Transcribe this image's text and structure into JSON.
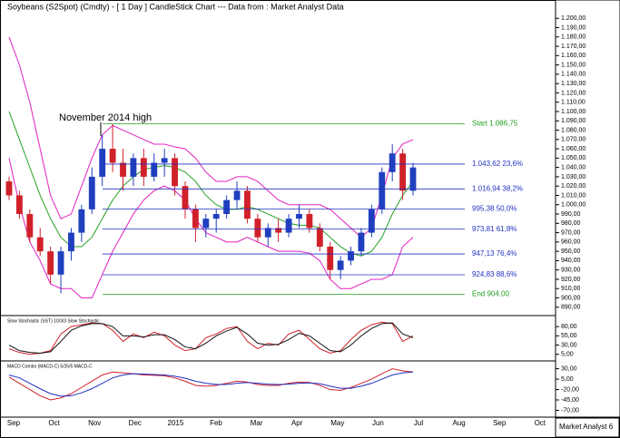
{
  "title": "Soybeans (S2Spot) (Cmdty) -  [ 1 Day ] CandleStick Chart --- Data from : Market Analyst Data",
  "footer": "Market Analyst 6",
  "categories": [
    "Sep",
    "Oct",
    "Nov",
    "Dec",
    "2015",
    "Feb",
    "Mar",
    "Apr",
    "May",
    "Jun",
    "Jul",
    "Aug",
    "Sep",
    "Oct"
  ],
  "chart_data": [
    {
      "type": "candlestick",
      "annotation": "November 2014 high",
      "up_color": "#1f3fbf",
      "down_color": "#d0202a",
      "ylim": [
        882,
        1208
      ],
      "yticks": [
        {
          "value": 890,
          "label": "890,00"
        },
        {
          "value": 900,
          "label": "900,00"
        },
        {
          "value": 910,
          "label": "910,00"
        },
        {
          "value": 920,
          "label": "920,00"
        },
        {
          "value": 930,
          "label": "930,00"
        },
        {
          "value": 940,
          "label": "940,00"
        },
        {
          "value": 950,
          "label": "950,00"
        },
        {
          "value": 960,
          "label": "960,00"
        },
        {
          "value": 970,
          "label": "970,00"
        },
        {
          "value": 980,
          "label": "980,00"
        },
        {
          "value": 990,
          "label": "990,00"
        },
        {
          "value": 1000,
          "label": "1.000,00"
        },
        {
          "value": 1010,
          "label": "1.010,00"
        },
        {
          "value": 1020,
          "label": "1.020,00"
        },
        {
          "value": 1030,
          "label": "1.030,00"
        },
        {
          "value": 1040,
          "label": "1.040,00"
        },
        {
          "value": 1050,
          "label": "1.050,00"
        },
        {
          "value": 1060,
          "label": "1.060,00"
        },
        {
          "value": 1070,
          "label": "1.070,00"
        },
        {
          "value": 1080,
          "label": "1.080,00"
        },
        {
          "value": 1090,
          "label": "1.090,00"
        },
        {
          "value": 1100,
          "label": "1.100,00"
        },
        {
          "value": 1110,
          "label": "1.110,00"
        },
        {
          "value": 1120,
          "label": "1.120,00"
        },
        {
          "value": 1130,
          "label": "1.130,00"
        },
        {
          "value": 1140,
          "label": "1.140,00"
        },
        {
          "value": 1150,
          "label": "1.150,00"
        },
        {
          "value": 1160,
          "label": "1.160,00"
        },
        {
          "value": 1170,
          "label": "1.170,00"
        },
        {
          "value": 1180,
          "label": "1.180,00"
        },
        {
          "value": 1190,
          "label": "1.190,00"
        },
        {
          "value": 1200,
          "label": "1.200,00"
        }
      ],
      "open": [
        1025,
        1010,
        990,
        965,
        950,
        925,
        950,
        970,
        995,
        1030,
        1060,
        1045,
        1030,
        1050,
        1030,
        1045,
        1050,
        1020,
        995,
        975,
        985,
        990,
        1005,
        1015,
        985,
        965,
        975,
        970,
        985,
        990,
        975,
        955,
        930,
        940,
        950,
        970,
        995,
        1035,
        1055,
        1015
      ],
      "high": [
        1030,
        1015,
        995,
        975,
        955,
        955,
        975,
        1000,
        1040,
        1075,
        1087,
        1060,
        1055,
        1060,
        1055,
        1060,
        1055,
        1025,
        1000,
        990,
        995,
        1010,
        1025,
        1020,
        990,
        980,
        985,
        990,
        1000,
        995,
        980,
        960,
        945,
        955,
        975,
        1000,
        1040,
        1065,
        1060,
        1045
      ],
      "low": [
        1005,
        985,
        960,
        945,
        915,
        905,
        940,
        960,
        990,
        1020,
        1035,
        1015,
        1020,
        1020,
        1025,
        1030,
        1010,
        985,
        960,
        965,
        970,
        985,
        995,
        980,
        960,
        955,
        960,
        965,
        975,
        970,
        950,
        920,
        920,
        935,
        945,
        965,
        990,
        1025,
        1005,
        1010
      ],
      "close": [
        1010,
        990,
        965,
        950,
        925,
        950,
        970,
        995,
        1030,
        1060,
        1045,
        1030,
        1050,
        1030,
        1045,
        1050,
        1020,
        995,
        975,
        985,
        990,
        1005,
        1015,
        985,
        965,
        975,
        970,
        985,
        990,
        975,
        955,
        930,
        940,
        950,
        970,
        995,
        1035,
        1055,
        1015,
        1040
      ],
      "series": [
        {
          "color": "#22a022",
          "values": [
            1100,
            1070,
            1040,
            1010,
            985,
            965,
            955,
            955,
            965,
            985,
            1005,
            1020,
            1030,
            1038,
            1040,
            1042,
            1040,
            1035,
            1025,
            1010,
            1000,
            995,
            995,
            998,
            995,
            990,
            985,
            980,
            978,
            978,
            975,
            965,
            955,
            948,
            945,
            950,
            965,
            990,
            1010,
            1025
          ]
        },
        {
          "color": "#e020c0",
          "values": [
            1180,
            1150,
            1110,
            1060,
            1010,
            985,
            990,
            1020,
            1050,
            1075,
            1085,
            1080,
            1075,
            1070,
            1065,
            1065,
            1062,
            1060,
            1050,
            1035,
            1025,
            1025,
            1030,
            1030,
            1025,
            1015,
            1005,
            1000,
            1000,
            1000,
            1000,
            995,
            985,
            975,
            965,
            975,
            1010,
            1050,
            1065,
            1070
          ]
        },
        {
          "color": "#e020c0",
          "values": [
            1050,
            1000,
            960,
            940,
            915,
            910,
            910,
            900,
            900,
            925,
            950,
            970,
            990,
            1005,
            1015,
            1020,
            1015,
            1005,
            985,
            970,
            965,
            960,
            960,
            965,
            960,
            955,
            950,
            950,
            950,
            948,
            940,
            920,
            910,
            910,
            915,
            920,
            920,
            925,
            955,
            965
          ]
        }
      ],
      "levels": [
        {
          "value": 1086.75,
          "label": "Start 1.086,75",
          "color": "#22a022"
        },
        {
          "value": 1043.62,
          "label": "1.043,62 23,6%",
          "color": "#2030c0"
        },
        {
          "value": 1016.94,
          "label": "1.016,94 38,2%",
          "color": "#2030c0"
        },
        {
          "value": 995.38,
          "label": "995,38 50,0%",
          "color": "#2030c0"
        },
        {
          "value": 973.81,
          "label": "973,81 61,8%",
          "color": "#2030c0"
        },
        {
          "value": 947.13,
          "label": "947,13 76,4%",
          "color": "#2030c0"
        },
        {
          "value": 924.83,
          "label": "924,83 88,6%",
          "color": "#2030c0"
        },
        {
          "value": 904,
          "label": "End 904,00",
          "color": "#22a022"
        }
      ]
    },
    {
      "type": "line",
      "title": "Slow Stochastic (SST) 10/3/3 Slow Stochastic",
      "ylim": [
        -8,
        100
      ],
      "yticks": [
        {
          "value": 80,
          "label": "80,00"
        },
        {
          "value": 55,
          "label": "55,00"
        },
        {
          "value": 30,
          "label": "30,00"
        },
        {
          "value": 5,
          "label": "5,00"
        }
      ],
      "series": [
        {
          "color": "#d0202a",
          "values": [
            20,
            10,
            5,
            8,
            15,
            60,
            80,
            85,
            90,
            88,
            70,
            40,
            60,
            50,
            65,
            55,
            30,
            15,
            20,
            50,
            60,
            75,
            80,
            40,
            20,
            35,
            30,
            60,
            70,
            45,
            20,
            8,
            15,
            45,
            70,
            85,
            92,
            88,
            40,
            55
          ]
        },
        {
          "color": "#111111",
          "values": [
            30,
            15,
            10,
            8,
            12,
            40,
            70,
            82,
            88,
            88,
            80,
            55,
            55,
            52,
            58,
            58,
            45,
            25,
            20,
            35,
            55,
            68,
            78,
            60,
            35,
            30,
            32,
            45,
            62,
            55,
            35,
            15,
            12,
            30,
            55,
            75,
            88,
            90,
            60,
            50
          ]
        }
      ]
    },
    {
      "type": "line",
      "title": "MACD Combo (MACD-C) 5/25/5 MACD-C",
      "ylim": [
        -82,
        40
      ],
      "yticks": [
        {
          "value": 30,
          "label": "30,00"
        },
        {
          "value": 5,
          "label": "5,00"
        },
        {
          "value": -20,
          "label": "-20,00"
        },
        {
          "value": -45,
          "label": "-45,00"
        },
        {
          "value": -70,
          "label": "-70,00"
        }
      ],
      "series": [
        {
          "color": "#d0202a",
          "values": [
            10,
            -5,
            -20,
            -35,
            -45,
            -40,
            -30,
            -15,
            0,
            15,
            22,
            20,
            18,
            15,
            14,
            13,
            8,
            0,
            -10,
            -12,
            -10,
            -5,
            0,
            -2,
            -8,
            -10,
            -10,
            -5,
            -2,
            -3,
            -10,
            -20,
            -22,
            -15,
            -5,
            5,
            18,
            30,
            25,
            22
          ]
        },
        {
          "color": "#2030c0",
          "values": [
            15,
            8,
            -5,
            -18,
            -30,
            -36,
            -35,
            -28,
            -18,
            -5,
            8,
            15,
            18,
            17,
            16,
            15,
            12,
            7,
            0,
            -5,
            -8,
            -8,
            -5,
            -3,
            -5,
            -7,
            -8,
            -7,
            -5,
            -4,
            -6,
            -12,
            -17,
            -17,
            -12,
            -5,
            5,
            15,
            20,
            22
          ]
        }
      ]
    }
  ]
}
